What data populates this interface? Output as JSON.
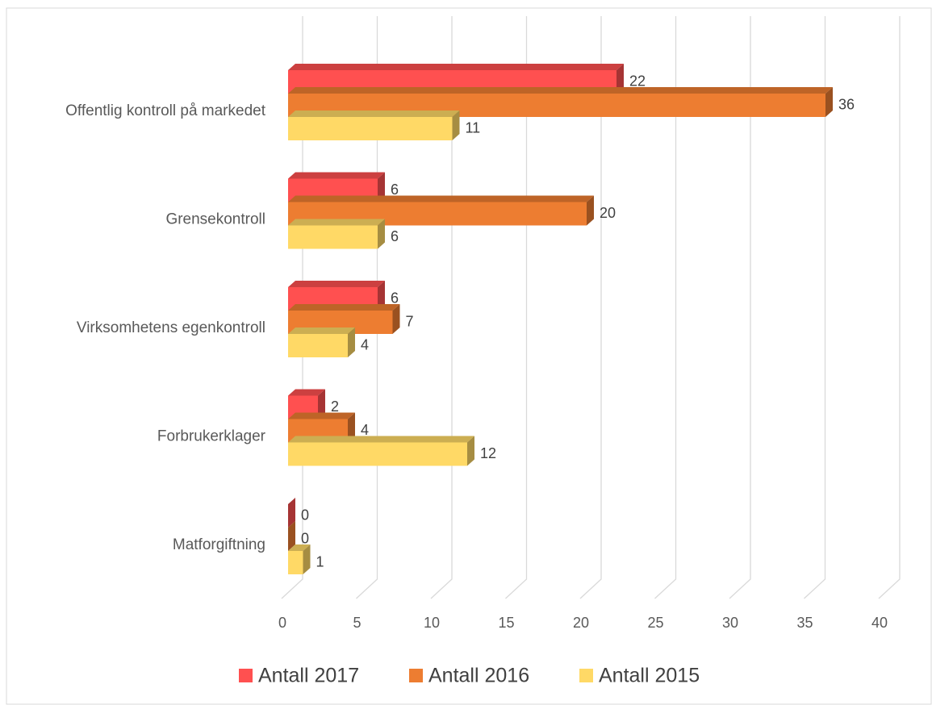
{
  "chart_data": {
    "type": "bar3d",
    "orientation": "horizontal",
    "categories": [
      "Offentlig kontroll på markedet",
      "Grensekontroll",
      "Virksomhetens egenkontroll",
      "Forbrukerklager",
      "Matforgiftning"
    ],
    "series": [
      {
        "name": "Antall 2017",
        "color": "#ff5050",
        "values": [
          22,
          6,
          6,
          2,
          0
        ]
      },
      {
        "name": "Antall 2016",
        "color": "#ed7d31",
        "values": [
          36,
          20,
          7,
          4,
          0
        ]
      },
      {
        "name": "Antall 2015",
        "color": "#ffd966",
        "values": [
          11,
          6,
          4,
          12,
          1
        ]
      }
    ],
    "xlim": [
      0,
      40
    ],
    "xticks": [
      0,
      5,
      10,
      15,
      20,
      25,
      30,
      35,
      40
    ],
    "grid": true,
    "legend": "bottom"
  }
}
